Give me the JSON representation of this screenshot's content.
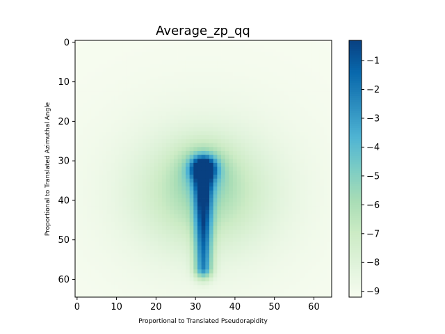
{
  "chart_data": {
    "type": "heatmap",
    "title": "Average_zp_qq",
    "xlabel": "Proportional to Translated Pseudorapidity",
    "ylabel": "Proportional to Translated Azimuthal Angle",
    "grid": false,
    "rows": 65,
    "cols": 65,
    "x_ticks": [
      0,
      10,
      20,
      30,
      40,
      50,
      60
    ],
    "y_ticks": [
      0,
      10,
      20,
      30,
      40,
      50,
      60
    ],
    "colormap": "GnBu",
    "color_range": [
      -9.2,
      -0.3
    ],
    "colorbar_ticks": [
      -1,
      -2,
      -3,
      -4,
      -5,
      -6,
      -7,
      -8,
      -9
    ],
    "features": {
      "background_level": -9.2,
      "core": {
        "col": 32,
        "row": 32,
        "value": -0.3
      },
      "stalk": {
        "col": 32,
        "row_from": 37,
        "row_to": 57,
        "value": -2.5
      },
      "halo": {
        "center_col": 32,
        "center_row": 38,
        "value": -8.5
      }
    }
  }
}
